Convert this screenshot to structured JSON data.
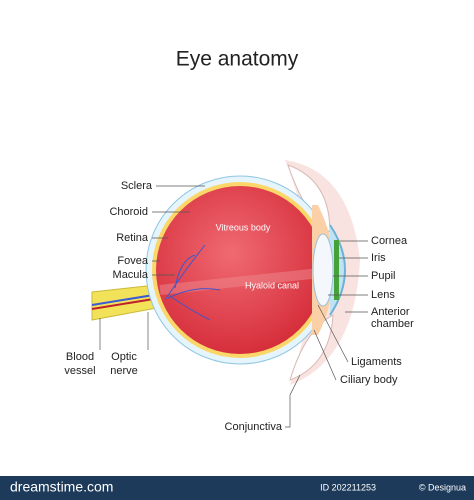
{
  "title": "Eye anatomy",
  "inner_labels": {
    "vitreous": "Vitreous body",
    "hyaloid": "Hyaloid canal"
  },
  "left_labels": [
    "Sclera",
    "Choroid",
    "Retina",
    "Fovea",
    "Macula"
  ],
  "bottom_labels": {
    "blood_vessel": [
      "Blood",
      "vessel"
    ],
    "optic_nerve": [
      "Optic",
      "nerve"
    ]
  },
  "right_labels": {
    "cornea": "Cornea",
    "iris": "Iris",
    "pupil": "Pupil",
    "lens": "Lens",
    "anterior_chamber": [
      "Anterior",
      "chamber"
    ],
    "ligaments": "Ligaments",
    "ciliary_body": "Ciliary body",
    "conjunctiva": "Conjunctiva"
  },
  "footer": {
    "site": "dreamstime.com",
    "id": "ID 202211253",
    "author": "© Designua"
  }
}
